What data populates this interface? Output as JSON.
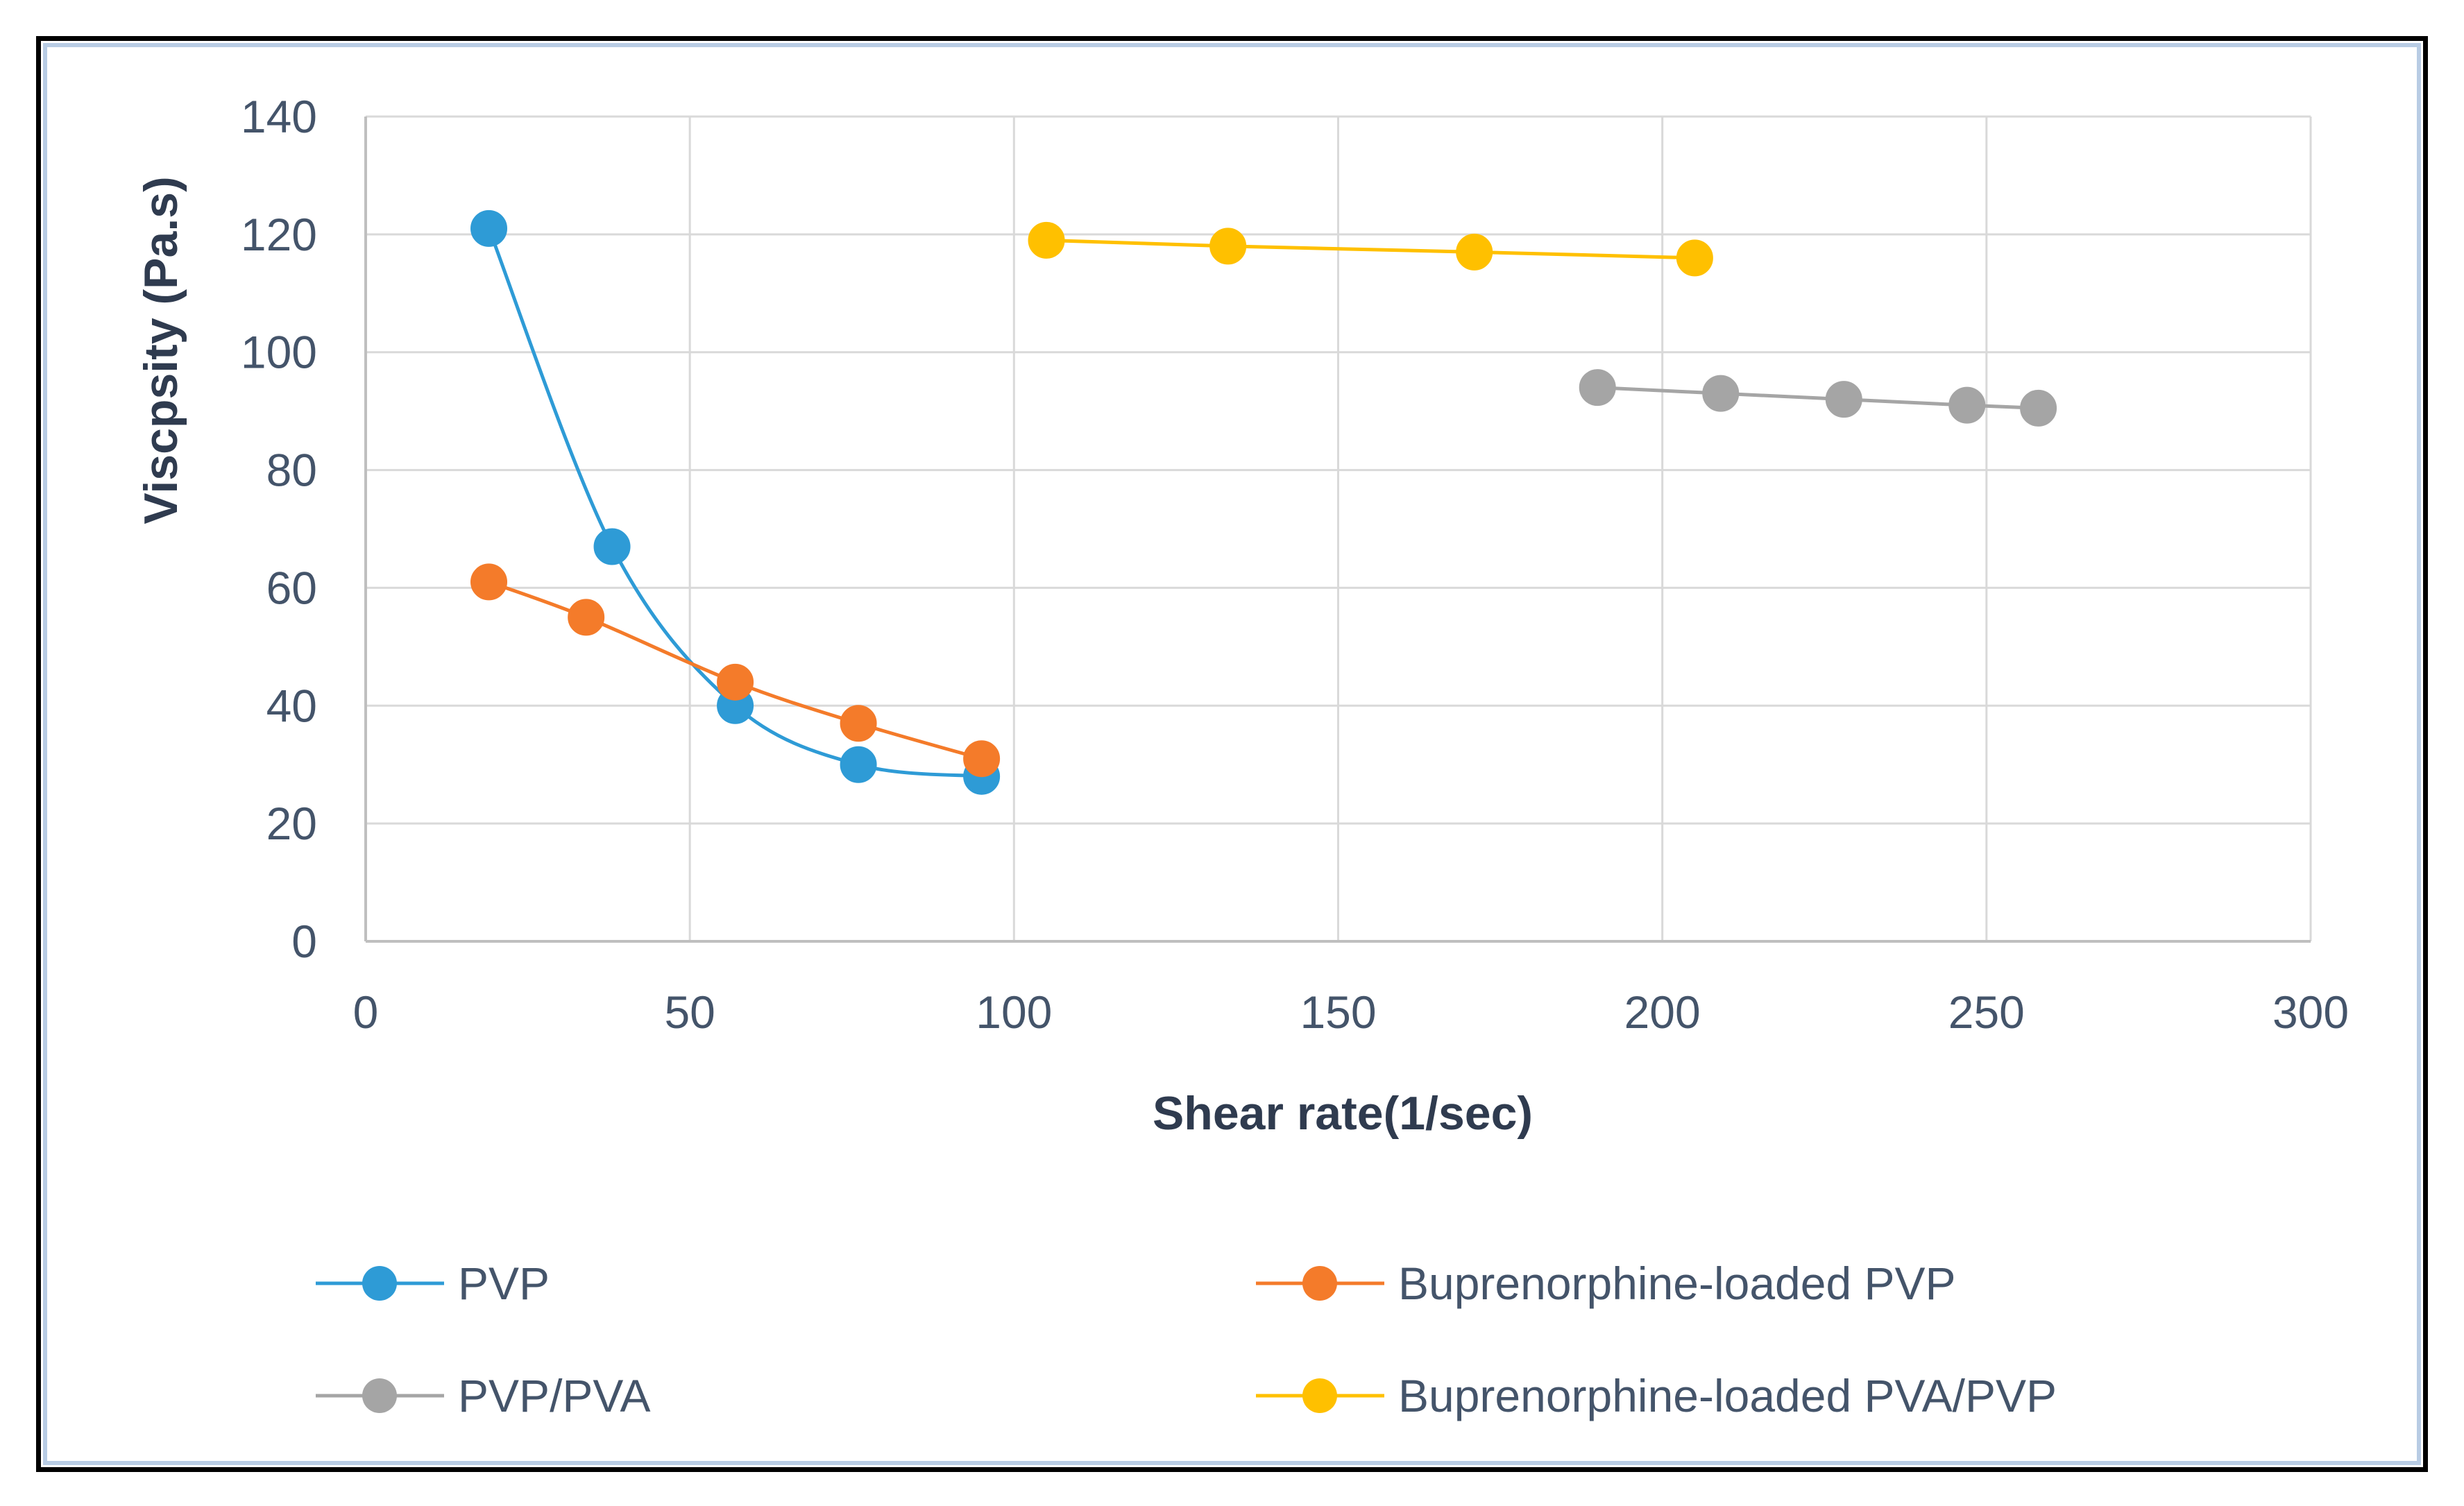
{
  "chart_data": {
    "type": "scatter",
    "xlabel": "Shear rate(1/sec)",
    "ylabel": "Viscpsity (Pa.s)",
    "xlim": [
      0,
      300
    ],
    "ylim": [
      0,
      140
    ],
    "xticks": [
      0,
      50,
      100,
      150,
      200,
      250,
      300
    ],
    "yticks": [
      0,
      20,
      40,
      60,
      80,
      100,
      120,
      140
    ],
    "grid": true,
    "legend_position": "bottom",
    "series": [
      {
        "name": "PVP",
        "color": "#2e9bd6",
        "smooth": true,
        "x": [
          19,
          38,
          57,
          76,
          95
        ],
        "y": [
          121,
          67,
          40,
          30,
          28
        ]
      },
      {
        "name": "Buprenorphine-loaded PVP",
        "color": "#f47b2a",
        "smooth": true,
        "x": [
          19,
          34,
          57,
          76,
          95
        ],
        "y": [
          61,
          55,
          44,
          37,
          31
        ]
      },
      {
        "name": "PVP/PVA",
        "color": "#a5a5a5",
        "smooth": false,
        "x": [
          190,
          209,
          228,
          247,
          258
        ],
        "y": [
          94,
          93,
          92,
          91,
          90.5
        ]
      },
      {
        "name": "Buprenorphine-loaded PVA/PVP",
        "color": "#ffc000",
        "smooth": false,
        "x": [
          105,
          133,
          171,
          205
        ],
        "y": [
          119,
          118,
          117,
          116
        ]
      }
    ]
  }
}
